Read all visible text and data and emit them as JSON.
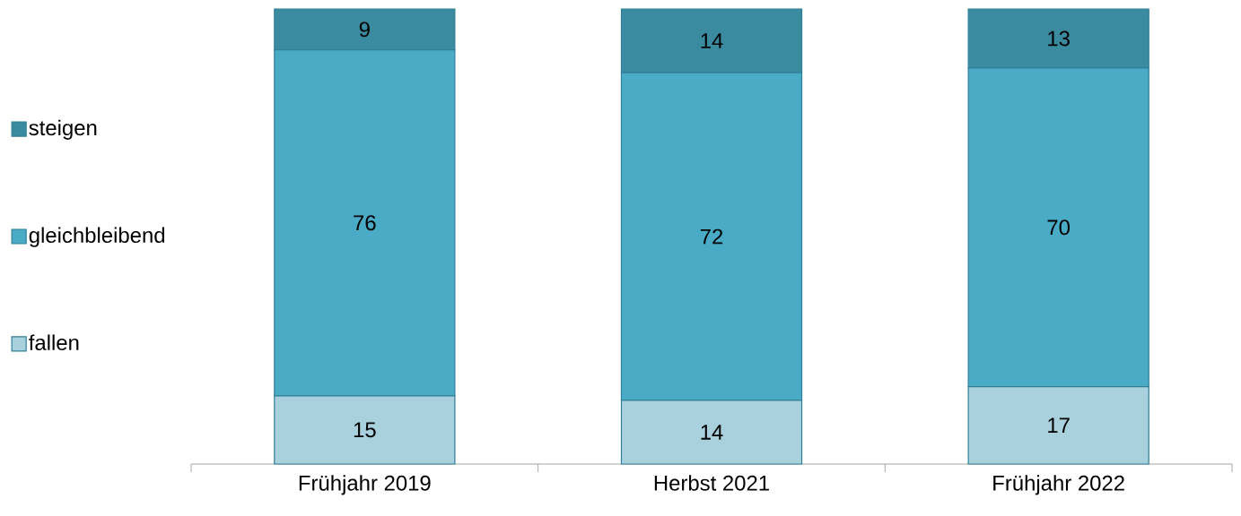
{
  "chart_data": {
    "type": "bar",
    "stacked": true,
    "categories": [
      "Frühjahr 2019",
      "Herbst 2021",
      "Frühjahr 2022"
    ],
    "series": [
      {
        "name": "fallen",
        "color": "#a9d0dd",
        "values": [
          15,
          14,
          17
        ]
      },
      {
        "name": "gleichbleibend",
        "color": "#4aabc6",
        "values": [
          76,
          72,
          70
        ]
      },
      {
        "name": "steigen",
        "color": "#3a8aa0",
        "values": [
          9,
          14,
          13
        ]
      }
    ],
    "ylim": [
      0,
      100
    ],
    "data_labels": true,
    "legend": "left"
  }
}
